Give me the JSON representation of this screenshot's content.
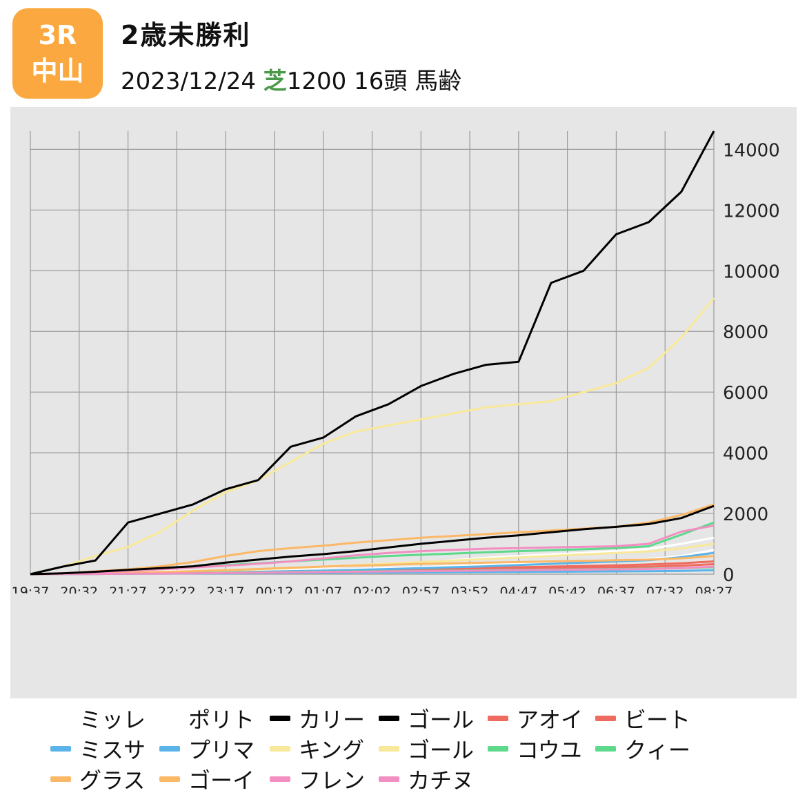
{
  "header": {
    "race_number": "3R",
    "venue": "中山",
    "title": "2歳未勝利",
    "date": "2023/12/24",
    "surface": "芝",
    "surface_color": "#4a9a4a",
    "distance": "1200",
    "field_size": "16頭",
    "condition": "馬齢",
    "badge_color": "#fca840"
  },
  "chart_data": {
    "type": "line",
    "x_ticks": [
      "19:37",
      "20:32",
      "21:27",
      "22:22",
      "23:17",
      "00:12",
      "01:07",
      "02:02",
      "02:57",
      "03:52",
      "04:47",
      "05:42",
      "06:37",
      "07:32",
      "08:27"
    ],
    "y_ticks": [
      "0",
      "2000",
      "4000",
      "6000",
      "8000",
      "10000",
      "12000",
      "14000"
    ],
    "ylim": [
      0,
      14600
    ],
    "grid": true,
    "legend_position": "bottom",
    "series": [
      {
        "name": "ミッレ",
        "color": "#ffffff",
        "values": [
          0,
          20,
          40,
          60,
          90,
          110,
          130,
          160,
          190,
          230,
          270,
          320,
          380,
          460,
          540,
          600,
          650,
          700,
          760,
          830,
          1000,
          1200
        ]
      },
      {
        "name": "ポリト",
        "color": "#ffffff",
        "values": [
          0,
          15,
          30,
          45,
          60,
          75,
          90,
          110,
          130,
          150,
          170,
          200,
          230,
          270,
          310,
          350,
          380,
          410,
          450,
          500,
          600,
          800
        ]
      },
      {
        "name": "カリー",
        "color": "#000000",
        "values": [
          0,
          250,
          450,
          1700,
          2000,
          2300,
          2800,
          3100,
          4200,
          4500,
          5200,
          5600,
          6200,
          6600,
          6900,
          7000,
          9600,
          10000,
          11200,
          11600,
          12600,
          14600
        ]
      },
      {
        "name": "ゴール",
        "color": "#000000",
        "values": [
          0,
          30,
          80,
          140,
          200,
          260,
          380,
          480,
          580,
          660,
          760,
          880,
          1000,
          1100,
          1200,
          1280,
          1380,
          1480,
          1560,
          1650,
          1850,
          2250
        ]
      },
      {
        "name": "アオイ",
        "color": "#ee6b5f",
        "values": [
          0,
          5,
          10,
          20,
          30,
          45,
          60,
          75,
          90,
          110,
          130,
          150,
          170,
          190,
          210,
          230,
          250,
          270,
          290,
          320,
          360,
          420
        ]
      },
      {
        "name": "ビート",
        "color": "#ee6b5f",
        "values": [
          0,
          5,
          10,
          15,
          25,
          35,
          50,
          65,
          80,
          95,
          110,
          125,
          140,
          155,
          170,
          185,
          200,
          215,
          230,
          250,
          280,
          330
        ]
      },
      {
        "name": "ミスサ",
        "color": "#5ab4ea",
        "values": [
          0,
          5,
          10,
          15,
          20,
          25,
          30,
          35,
          40,
          45,
          50,
          55,
          60,
          65,
          70,
          75,
          80,
          85,
          90,
          95,
          110,
          130
        ]
      },
      {
        "name": "プリマ",
        "color": "#5ab4ea",
        "values": [
          0,
          10,
          20,
          30,
          40,
          50,
          60,
          80,
          100,
          120,
          140,
          170,
          200,
          230,
          260,
          300,
          340,
          380,
          420,
          460,
          560,
          700
        ]
      },
      {
        "name": "キング",
        "color": "#f8e99a",
        "values": [
          0,
          250,
          600,
          900,
          1400,
          2100,
          2700,
          3100,
          3700,
          4300,
          4700,
          4900,
          5100,
          5300,
          5500,
          5600,
          5700,
          6000,
          6300,
          6800,
          7800,
          9100
        ]
      },
      {
        "name": "ゴール",
        "color": "#f8e99a",
        "values": [
          0,
          10,
          20,
          40,
          60,
          90,
          120,
          160,
          200,
          250,
          300,
          350,
          400,
          450,
          500,
          550,
          600,
          650,
          700,
          750,
          850,
          1000
        ]
      },
      {
        "name": "コウユ",
        "color": "#5cd98a",
        "values": [
          0,
          20,
          60,
          120,
          180,
          240,
          300,
          360,
          420,
          480,
          540,
          600,
          640,
          680,
          720,
          760,
          790,
          820,
          860,
          920,
          1300,
          1700
        ]
      },
      {
        "name": "クィー",
        "color": "#5cd98a",
        "values": [
          0,
          5,
          10,
          20,
          30,
          40,
          50,
          60,
          70,
          80,
          90,
          100,
          110,
          120,
          130,
          140,
          150,
          160,
          170,
          180,
          200,
          230
        ]
      },
      {
        "name": "グラス",
        "color": "#fbb866",
        "values": [
          0,
          30,
          90,
          160,
          260,
          400,
          600,
          760,
          860,
          940,
          1040,
          1120,
          1200,
          1260,
          1320,
          1380,
          1440,
          1500,
          1560,
          1700,
          1950,
          2300
        ]
      },
      {
        "name": "ゴーイ",
        "color": "#fbb866",
        "values": [
          0,
          10,
          25,
          45,
          70,
          100,
          130,
          170,
          210,
          250,
          280,
          310,
          340,
          360,
          380,
          400,
          420,
          440,
          460,
          480,
          520,
          600
        ]
      },
      {
        "name": "フレン",
        "color": "#f28ec2",
        "values": [
          0,
          30,
          70,
          110,
          160,
          220,
          280,
          340,
          420,
          520,
          620,
          700,
          760,
          800,
          840,
          860,
          880,
          900,
          920,
          1000,
          1400,
          1600
        ]
      },
      {
        "name": "カチヌ",
        "color": "#f28ec2",
        "values": [
          0,
          5,
          10,
          15,
          20,
          30,
          40,
          50,
          60,
          70,
          80,
          90,
          100,
          110,
          120,
          130,
          140,
          150,
          160,
          170,
          200,
          250
        ]
      }
    ]
  }
}
